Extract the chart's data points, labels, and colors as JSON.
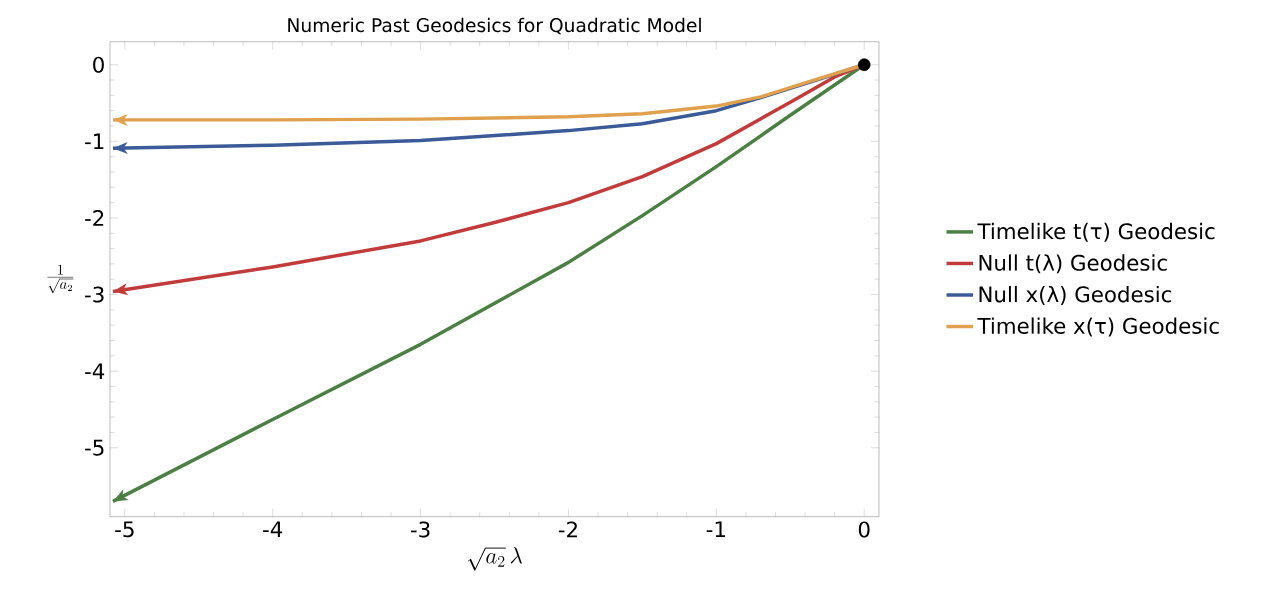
{
  "chart_data": {
    "type": "line",
    "title": "Numeric Past Geodesics for Quadratic Model",
    "xlabel": "\\sqrt{a_2}\\,\\lambda",
    "ylabel": "\\frac{1}{\\sqrt{a_2}}",
    "xlim": [
      -5.1,
      0.1
    ],
    "ylim": [
      -5.9,
      0.3
    ],
    "xticks": [
      -5,
      -4,
      -3,
      -2,
      -1,
      0
    ],
    "yticks": [
      0,
      -1,
      -2,
      -3,
      -4,
      -5
    ],
    "grid": false,
    "legend": "right",
    "series": [
      {
        "name": "Timelike t(τ) Geodesic",
        "color": "#4b7f44",
        "x": [
          -5.08,
          -4,
          -3,
          -2,
          -1.5,
          -1,
          -0.5,
          0
        ],
        "values": [
          -5.7,
          -4.63,
          -3.65,
          -2.58,
          -1.97,
          -1.33,
          -0.66,
          0
        ]
      },
      {
        "name": "Null t(λ) Geodesic",
        "color": "#c23b3b",
        "x": [
          -5.08,
          -4,
          -3,
          -2.5,
          -2,
          -1.5,
          -1,
          -0.5,
          -0.2,
          0
        ],
        "values": [
          -2.96,
          -2.64,
          -2.3,
          -2.06,
          -1.8,
          -1.46,
          -1.03,
          -0.49,
          -0.16,
          0
        ]
      },
      {
        "name": "Null x(λ) Geodesic",
        "color": "#3b5a98",
        "x": [
          -5.08,
          -4,
          -3,
          -2,
          -1.5,
          -1,
          -0.7,
          -0.34,
          0
        ],
        "values": [
          -1.09,
          -1.05,
          -0.99,
          -0.86,
          -0.77,
          -0.6,
          -0.43,
          -0.21,
          0
        ]
      },
      {
        "name": "Timelike x(τ) Geodesic",
        "color": "#e0a04e",
        "x": [
          -5.08,
          -4,
          -3,
          -2,
          -1.5,
          -1,
          -0.7,
          -0.34,
          0
        ],
        "values": [
          -0.72,
          -0.72,
          -0.71,
          -0.68,
          -0.64,
          -0.54,
          -0.42,
          -0.2,
          0
        ]
      },
      {
        "type": "scatter",
        "marker": "circle",
        "color": "#000000",
        "x": [
          0
        ],
        "values": [
          0
        ]
      }
    ]
  }
}
